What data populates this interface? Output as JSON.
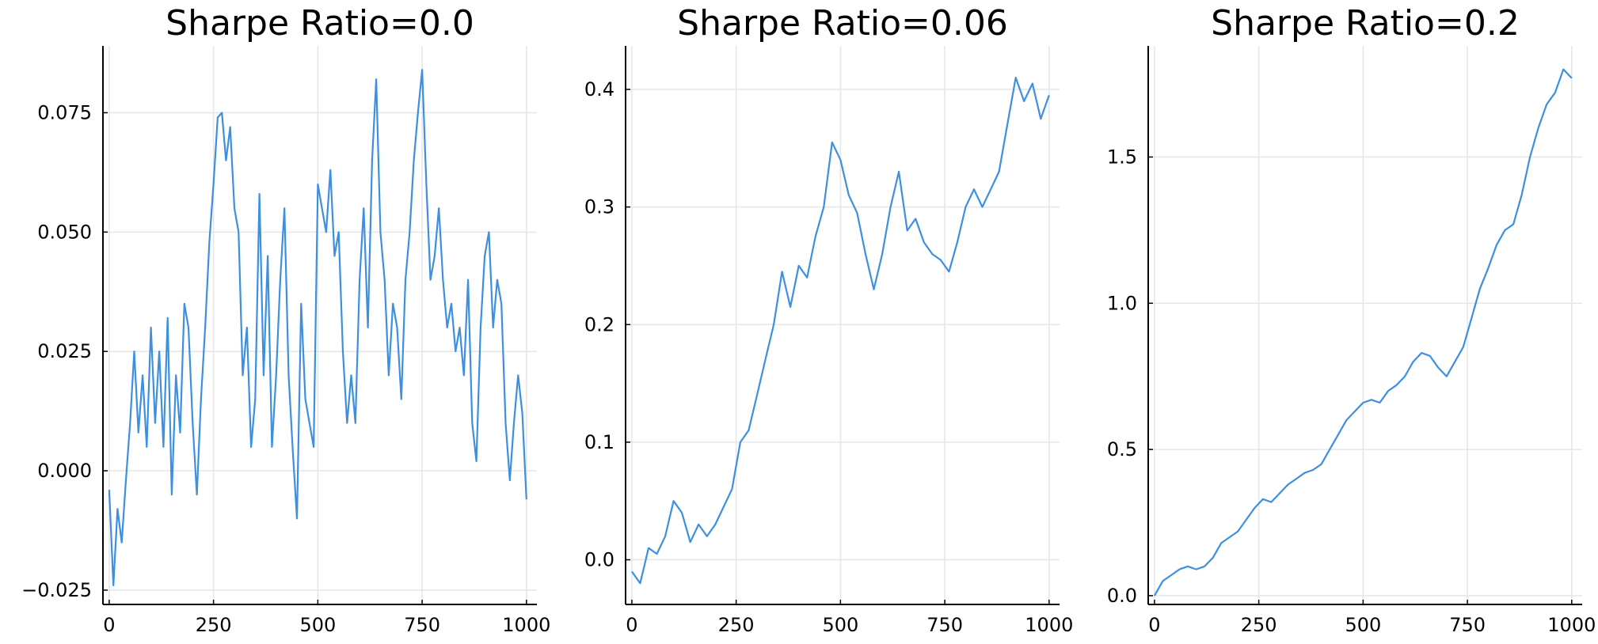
{
  "chart_data": [
    {
      "type": "line",
      "title": "Sharpe Ratio=0.0",
      "xlabel": "",
      "ylabel": "",
      "xlim": [
        -15,
        1025
      ],
      "ylim": [
        -0.028,
        0.089
      ],
      "xticks": [
        0,
        250,
        500,
        750,
        1000
      ],
      "xtick_labels": [
        "0",
        "250",
        "500",
        "750",
        "1000"
      ],
      "yticks": [
        -0.025,
        0.0,
        0.025,
        0.05,
        0.075
      ],
      "ytick_labels": [
        "−0.025",
        "0.000",
        "0.025",
        "0.050",
        "0.075"
      ],
      "grid": true,
      "legend": false,
      "color": "#3d8fe0",
      "series": [
        {
          "x": [
            0,
            10,
            20,
            30,
            40,
            50,
            60,
            70,
            80,
            90,
            100,
            110,
            120,
            130,
            140,
            150,
            160,
            170,
            180,
            190,
            200,
            210,
            220,
            230,
            240,
            250,
            260,
            270,
            280,
            290,
            300,
            310,
            320,
            330,
            340,
            350,
            360,
            370,
            380,
            390,
            400,
            410,
            420,
            430,
            440,
            450,
            460,
            470,
            480,
            490,
            500,
            510,
            520,
            530,
            540,
            550,
            560,
            570,
            580,
            590,
            600,
            610,
            620,
            630,
            640,
            650,
            660,
            670,
            680,
            690,
            700,
            710,
            720,
            730,
            740,
            750,
            760,
            770,
            780,
            790,
            800,
            810,
            820,
            830,
            840,
            850,
            860,
            870,
            880,
            890,
            900,
            910,
            920,
            930,
            940,
            950,
            960,
            970,
            980,
            990,
            1000
          ],
          "y": [
            -0.004,
            -0.024,
            -0.008,
            -0.015,
            -0.002,
            0.01,
            0.025,
            0.008,
            0.02,
            0.005,
            0.03,
            0.01,
            0.025,
            0.005,
            0.032,
            -0.005,
            0.02,
            0.008,
            0.035,
            0.03,
            0.01,
            -0.005,
            0.015,
            0.03,
            0.048,
            0.06,
            0.074,
            0.075,
            0.065,
            0.072,
            0.055,
            0.05,
            0.02,
            0.03,
            0.005,
            0.015,
            0.058,
            0.02,
            0.045,
            0.005,
            0.02,
            0.04,
            0.055,
            0.02,
            0.004,
            -0.01,
            0.035,
            0.015,
            0.01,
            0.005,
            0.06,
            0.055,
            0.05,
            0.063,
            0.045,
            0.05,
            0.025,
            0.01,
            0.02,
            0.01,
            0.04,
            0.055,
            0.03,
            0.065,
            0.082,
            0.05,
            0.04,
            0.02,
            0.035,
            0.03,
            0.015,
            0.04,
            0.05,
            0.065,
            0.075,
            0.084,
            0.06,
            0.04,
            0.045,
            0.055,
            0.04,
            0.03,
            0.035,
            0.025,
            0.03,
            0.02,
            0.04,
            0.01,
            0.002,
            0.03,
            0.045,
            0.05,
            0.03,
            0.04,
            0.035,
            0.01,
            -0.002,
            0.01,
            0.02,
            0.012,
            -0.006
          ]
        }
      ]
    },
    {
      "type": "line",
      "title": "Sharpe Ratio=0.06",
      "xlabel": "",
      "ylabel": "",
      "xlim": [
        -15,
        1025
      ],
      "ylim": [
        -0.038,
        0.437
      ],
      "xticks": [
        0,
        250,
        500,
        750,
        1000
      ],
      "xtick_labels": [
        "0",
        "250",
        "500",
        "750",
        "1000"
      ],
      "yticks": [
        0.0,
        0.1,
        0.2,
        0.3,
        0.4
      ],
      "ytick_labels": [
        "0.0",
        "0.1",
        "0.2",
        "0.3",
        "0.4"
      ],
      "grid": true,
      "legend": false,
      "color": "#3d8fe0",
      "series": [
        {
          "x": [
            0,
            20,
            40,
            60,
            80,
            100,
            120,
            140,
            160,
            180,
            200,
            220,
            240,
            260,
            280,
            300,
            320,
            340,
            360,
            380,
            400,
            420,
            440,
            460,
            480,
            500,
            520,
            540,
            560,
            580,
            600,
            620,
            640,
            660,
            680,
            700,
            720,
            740,
            760,
            780,
            800,
            820,
            840,
            860,
            880,
            900,
            920,
            940,
            960,
            980,
            1000
          ],
          "y": [
            -0.01,
            -0.02,
            0.01,
            0.005,
            0.02,
            0.05,
            0.04,
            0.015,
            0.03,
            0.02,
            0.03,
            0.045,
            0.06,
            0.1,
            0.11,
            0.14,
            0.17,
            0.2,
            0.245,
            0.215,
            0.25,
            0.24,
            0.275,
            0.3,
            0.355,
            0.34,
            0.31,
            0.295,
            0.26,
            0.23,
            0.26,
            0.3,
            0.33,
            0.28,
            0.29,
            0.27,
            0.26,
            0.255,
            0.245,
            0.27,
            0.3,
            0.315,
            0.3,
            0.315,
            0.33,
            0.37,
            0.41,
            0.39,
            0.405,
            0.375,
            0.395
          ]
        }
      ]
    },
    {
      "type": "line",
      "title": "Sharpe Ratio=0.2",
      "xlabel": "",
      "ylabel": "",
      "xlim": [
        -15,
        1025
      ],
      "ylim": [
        -0.03,
        1.88
      ],
      "xticks": [
        0,
        250,
        500,
        750,
        1000
      ],
      "xtick_labels": [
        "0",
        "250",
        "500",
        "750",
        "1000"
      ],
      "yticks": [
        0.0,
        0.5,
        1.0,
        1.5
      ],
      "ytick_labels": [
        "0.0",
        "0.5",
        "1.0",
        "1.5"
      ],
      "grid": true,
      "legend": false,
      "color": "#3d8fe0",
      "series": [
        {
          "x": [
            0,
            20,
            40,
            60,
            80,
            100,
            120,
            140,
            160,
            180,
            200,
            220,
            240,
            260,
            280,
            300,
            320,
            340,
            360,
            380,
            400,
            420,
            440,
            460,
            480,
            500,
            520,
            540,
            560,
            580,
            600,
            620,
            640,
            660,
            680,
            700,
            720,
            740,
            760,
            780,
            800,
            820,
            840,
            860,
            880,
            900,
            920,
            940,
            960,
            980,
            1000
          ],
          "y": [
            0.0,
            0.05,
            0.07,
            0.09,
            0.1,
            0.09,
            0.1,
            0.13,
            0.18,
            0.2,
            0.22,
            0.26,
            0.3,
            0.33,
            0.32,
            0.35,
            0.38,
            0.4,
            0.42,
            0.43,
            0.45,
            0.5,
            0.55,
            0.6,
            0.63,
            0.66,
            0.67,
            0.66,
            0.7,
            0.72,
            0.75,
            0.8,
            0.83,
            0.82,
            0.78,
            0.75,
            0.8,
            0.85,
            0.95,
            1.05,
            1.12,
            1.2,
            1.25,
            1.27,
            1.37,
            1.5,
            1.6,
            1.68,
            1.72,
            1.8,
            1.77
          ]
        }
      ]
    }
  ]
}
